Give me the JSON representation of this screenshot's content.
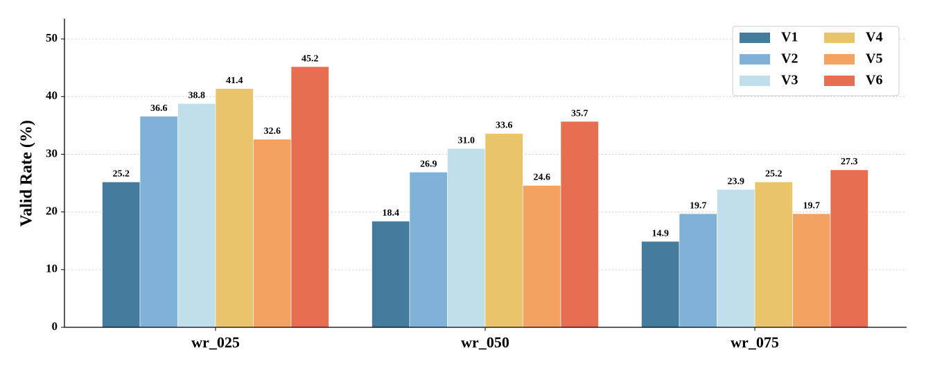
{
  "chart_data": {
    "type": "bar",
    "ylabel": "Valid Rate (%)",
    "categories": [
      "wr_025",
      "wr_050",
      "wr_075"
    ],
    "series": [
      {
        "name": "V1",
        "color": "#457b9d",
        "values": [
          25.2,
          18.4,
          14.9
        ],
        "value_labels": [
          "25.2",
          "18.4",
          "14.9"
        ]
      },
      {
        "name": "V2",
        "color": "#7fb2d6",
        "values": [
          36.6,
          26.9,
          19.7
        ],
        "value_labels": [
          "36.6",
          "26.9",
          "19.7"
        ]
      },
      {
        "name": "V3",
        "color": "#c0dfea",
        "values": [
          38.8,
          31.0,
          23.9
        ],
        "value_labels": [
          "38.8",
          "31.0",
          "23.9"
        ]
      },
      {
        "name": "V4",
        "color": "#e9c46a",
        "values": [
          41.4,
          33.6,
          25.2
        ],
        "value_labels": [
          "41.4",
          "33.6",
          "25.2"
        ]
      },
      {
        "name": "V5",
        "color": "#f4a261",
        "values": [
          32.6,
          24.6,
          19.7
        ],
        "value_labels": [
          "32.6",
          "24.6",
          "19.7"
        ]
      },
      {
        "name": "V6",
        "color": "#e76f51",
        "values": [
          45.2,
          35.7,
          27.3
        ],
        "value_labels": [
          "45.2",
          "35.7",
          "27.3"
        ]
      }
    ],
    "ylim": [
      0,
      53.5
    ],
    "yticks": [
      0,
      10,
      20,
      30,
      40,
      50
    ],
    "grid": true,
    "legend": "upper right"
  }
}
